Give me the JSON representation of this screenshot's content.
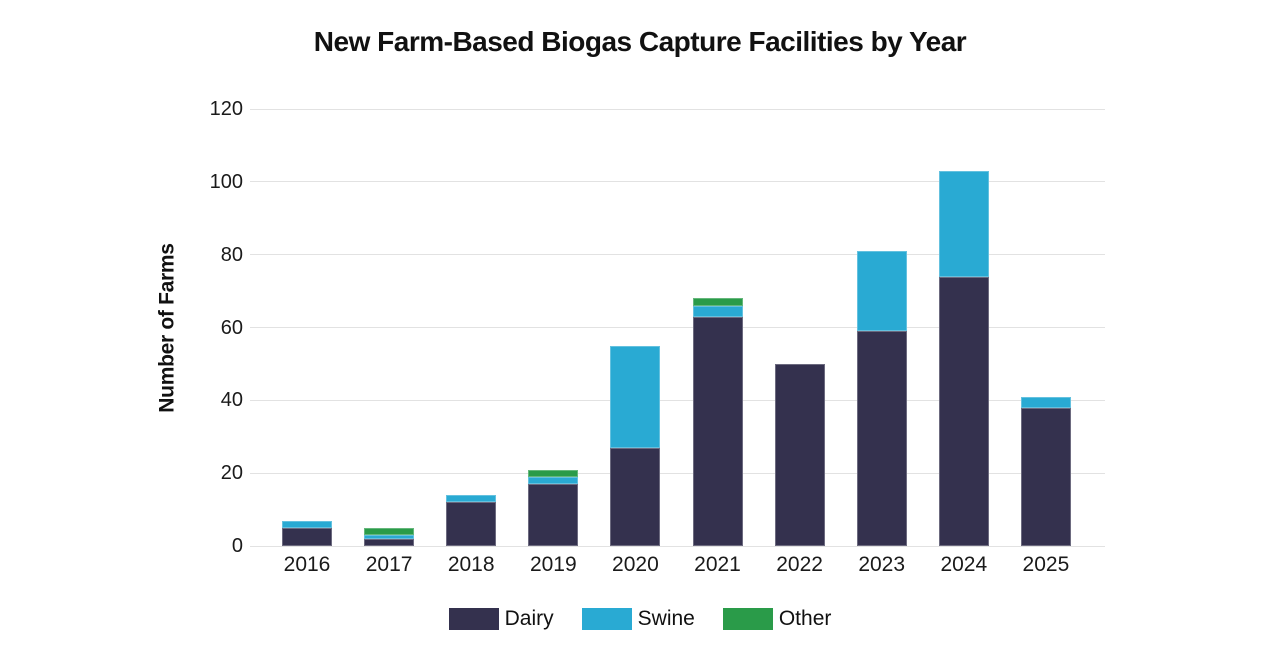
{
  "title": "New Farm-Based Biogas Capture Facilities by Year",
  "chart_data": {
    "type": "bar",
    "stacked": true,
    "title": "New Farm-Based Biogas Capture Facilities by Year",
    "xlabel": "",
    "ylabel": "Number of Farms",
    "ylim": [
      0,
      120
    ],
    "yticks": [
      0,
      20,
      40,
      60,
      80,
      100,
      120
    ],
    "grid": "horizontal",
    "legend_position": "bottom",
    "categories": [
      "2016",
      "2017",
      "2018",
      "2019",
      "2020",
      "2021",
      "2022",
      "2023",
      "2024",
      "2025"
    ],
    "series": [
      {
        "name": "Dairy",
        "color": "#34314e",
        "values": [
          5,
          2,
          12,
          17,
          27,
          63,
          50,
          59,
          74,
          38
        ]
      },
      {
        "name": "Swine",
        "color": "#29aad3",
        "values": [
          2,
          1,
          2,
          2,
          28,
          3,
          0,
          22,
          29,
          3
        ]
      },
      {
        "name": "Other",
        "color": "#2a9b49",
        "values": [
          0,
          2,
          0,
          2,
          0,
          2,
          0,
          0,
          0,
          0
        ]
      }
    ],
    "totals": [
      7,
      5,
      14,
      21,
      55,
      68,
      50,
      81,
      103,
      41
    ]
  },
  "colors": {
    "background": "#ffffff",
    "gridline": "#e2e2e2",
    "text": "#111111"
  }
}
